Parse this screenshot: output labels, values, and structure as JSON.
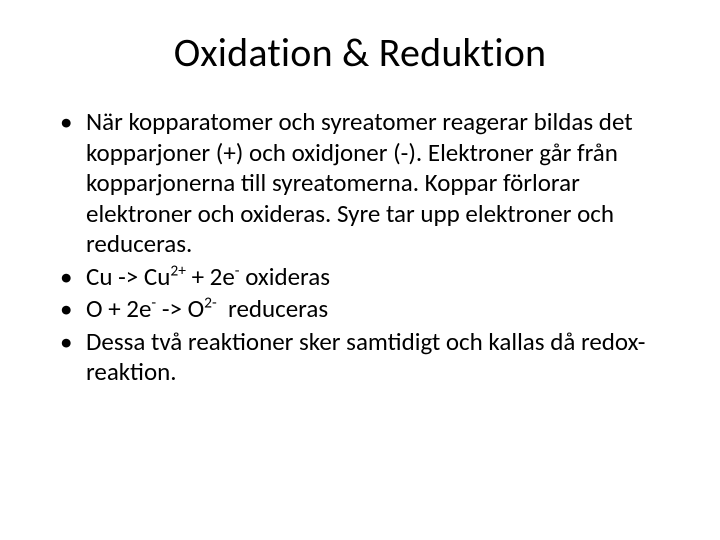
{
  "slide": {
    "title": "Oxidation & Reduktion",
    "bullets": [
      {
        "text": "När kopparatomer och syreatomer reagerar bildas det kopparjoner (+) och oxidjoner (-). Elektroner går från kopparjonerna till syreatomerna. Koppar förlorar elektroner och oxideras. Syre tar upp elektroner och reduceras."
      },
      {
        "html": "Cu -> Cu<sup>2+</sup> + 2e<sup>-</sup> oxideras"
      },
      {
        "html": "O + 2e<sup>-</sup> -> O<sup>2-</sup>&nbsp; reduceras"
      },
      {
        "text": "Dessa två reaktioner sker samtidigt och kallas då redox-reaktion."
      }
    ],
    "style": {
      "background_color": "#ffffff",
      "text_color": "#000000",
      "title_fontsize": 40,
      "body_fontsize": 25,
      "font_family": "Calibri",
      "bullet_glyph": "•"
    }
  }
}
